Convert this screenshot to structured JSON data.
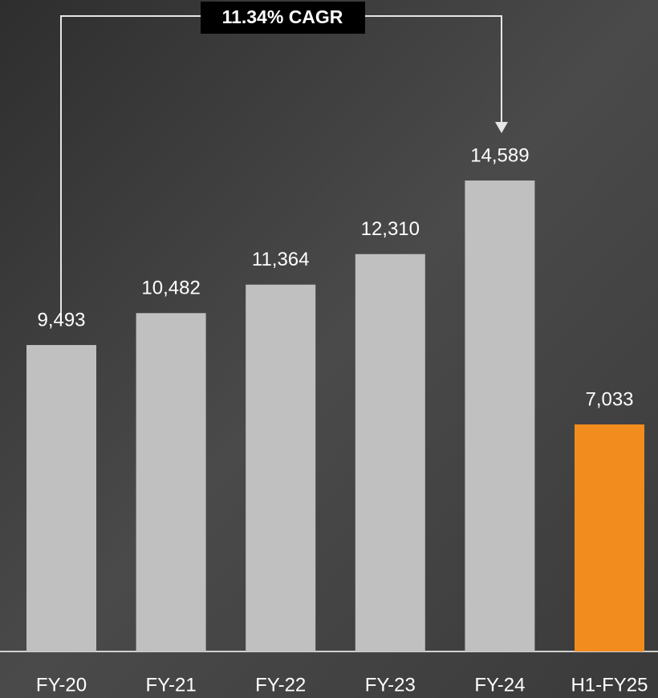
{
  "chart_data": {
    "type": "bar",
    "annotation": "11.34% CAGR",
    "categories": [
      "FY-20",
      "FY-21",
      "FY-22",
      "FY-23",
      "FY-24",
      "H1-FY25"
    ],
    "values": [
      9493,
      10482,
      11364,
      12310,
      14589,
      7033
    ],
    "value_labels": [
      "9,493",
      "10,482",
      "11,364",
      "12,310",
      "14,589",
      "7,033"
    ],
    "colors": [
      "#c0c0c0",
      "#c0c0c0",
      "#c0c0c0",
      "#c0c0c0",
      "#c0c0c0",
      "#f28c1e"
    ]
  }
}
